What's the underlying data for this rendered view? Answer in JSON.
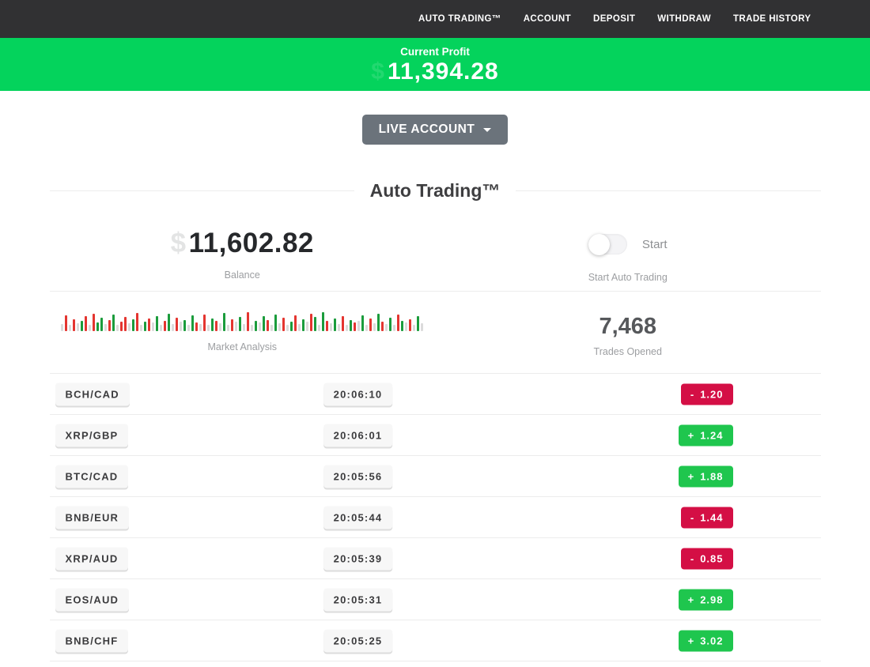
{
  "nav": {
    "items": [
      "AUTO TRADING™",
      "ACCOUNT",
      "DEPOSIT",
      "WITHDRAW",
      "TRADE HISTORY"
    ]
  },
  "banner": {
    "label": "Current Profit",
    "ghost": "$",
    "value": "11,394.28"
  },
  "account_selector": {
    "label": "LIVE ACCOUNT"
  },
  "section": {
    "title": "Auto Trading™"
  },
  "stats": {
    "balance": {
      "ghost": "$",
      "value": "11,602.82",
      "label": "Balance"
    },
    "auto_trading": {
      "toggle_label": "Start",
      "toggle_state": "off",
      "label": "Start Auto Trading"
    },
    "market": {
      "label": "Market Analysis",
      "bars": [
        "n9",
        "r20",
        "n8",
        "r15",
        "n10",
        "g13",
        "r19",
        "n8",
        "r22",
        "g11",
        "g17",
        "n9",
        "r14",
        "g21",
        "n8",
        "r12",
        "r18",
        "n10",
        "g15",
        "r23",
        "n8",
        "g12",
        "r16",
        "n11",
        "g19",
        "n8",
        "r13",
        "g22",
        "n9",
        "r17",
        "n12",
        "g14",
        "n8",
        "g20",
        "r11",
        "n9",
        "r21",
        "n8",
        "g16",
        "r13",
        "n10",
        "g23",
        "n8",
        "r15",
        "n12",
        "g18",
        "n9",
        "r24",
        "n8",
        "g13",
        "n11",
        "g19",
        "r14",
        "n8",
        "g21",
        "n10",
        "r17",
        "n8",
        "g12",
        "r20",
        "n9",
        "g15",
        "n12",
        "r22",
        "g18",
        "n8",
        "g24",
        "r13",
        "n10",
        "g16",
        "n9",
        "r19",
        "n8",
        "g14",
        "r11",
        "n13",
        "g20",
        "n8",
        "r16",
        "n10",
        "g22",
        "r12",
        "n9",
        "g17",
        "n8",
        "r21",
        "g13",
        "n11",
        "r15",
        "n8",
        "g19",
        "n10"
      ]
    },
    "trades_opened": {
      "value": "7,468",
      "label": "Trades Opened"
    }
  },
  "trades": [
    {
      "pair": "BCH/CAD",
      "time": "20:06:10",
      "sign": "-",
      "value": "1.20",
      "direction": "down"
    },
    {
      "pair": "XRP/GBP",
      "time": "20:06:01",
      "sign": "+",
      "value": "1.24",
      "direction": "up"
    },
    {
      "pair": "BTC/CAD",
      "time": "20:05:56",
      "sign": "+",
      "value": "1.88",
      "direction": "up"
    },
    {
      "pair": "BNB/EUR",
      "time": "20:05:44",
      "sign": "-",
      "value": "1.44",
      "direction": "down"
    },
    {
      "pair": "XRP/AUD",
      "time": "20:05:39",
      "sign": "-",
      "value": "0.85",
      "direction": "down"
    },
    {
      "pair": "EOS/AUD",
      "time": "20:05:31",
      "sign": "+",
      "value": "2.98",
      "direction": "up"
    },
    {
      "pair": "BNB/CHF",
      "time": "20:05:25",
      "sign": "+",
      "value": "3.02",
      "direction": "up"
    }
  ],
  "colors": {
    "nav_bg": "#313133",
    "banner_green": "#04d35c",
    "badge_up": "#1fc64e",
    "badge_down": "#d40f45",
    "bar_green": "#1b9c3c",
    "bar_red": "#e43530",
    "bar_neutral": "#dbdbdb",
    "button_gray": "#6b737b"
  }
}
